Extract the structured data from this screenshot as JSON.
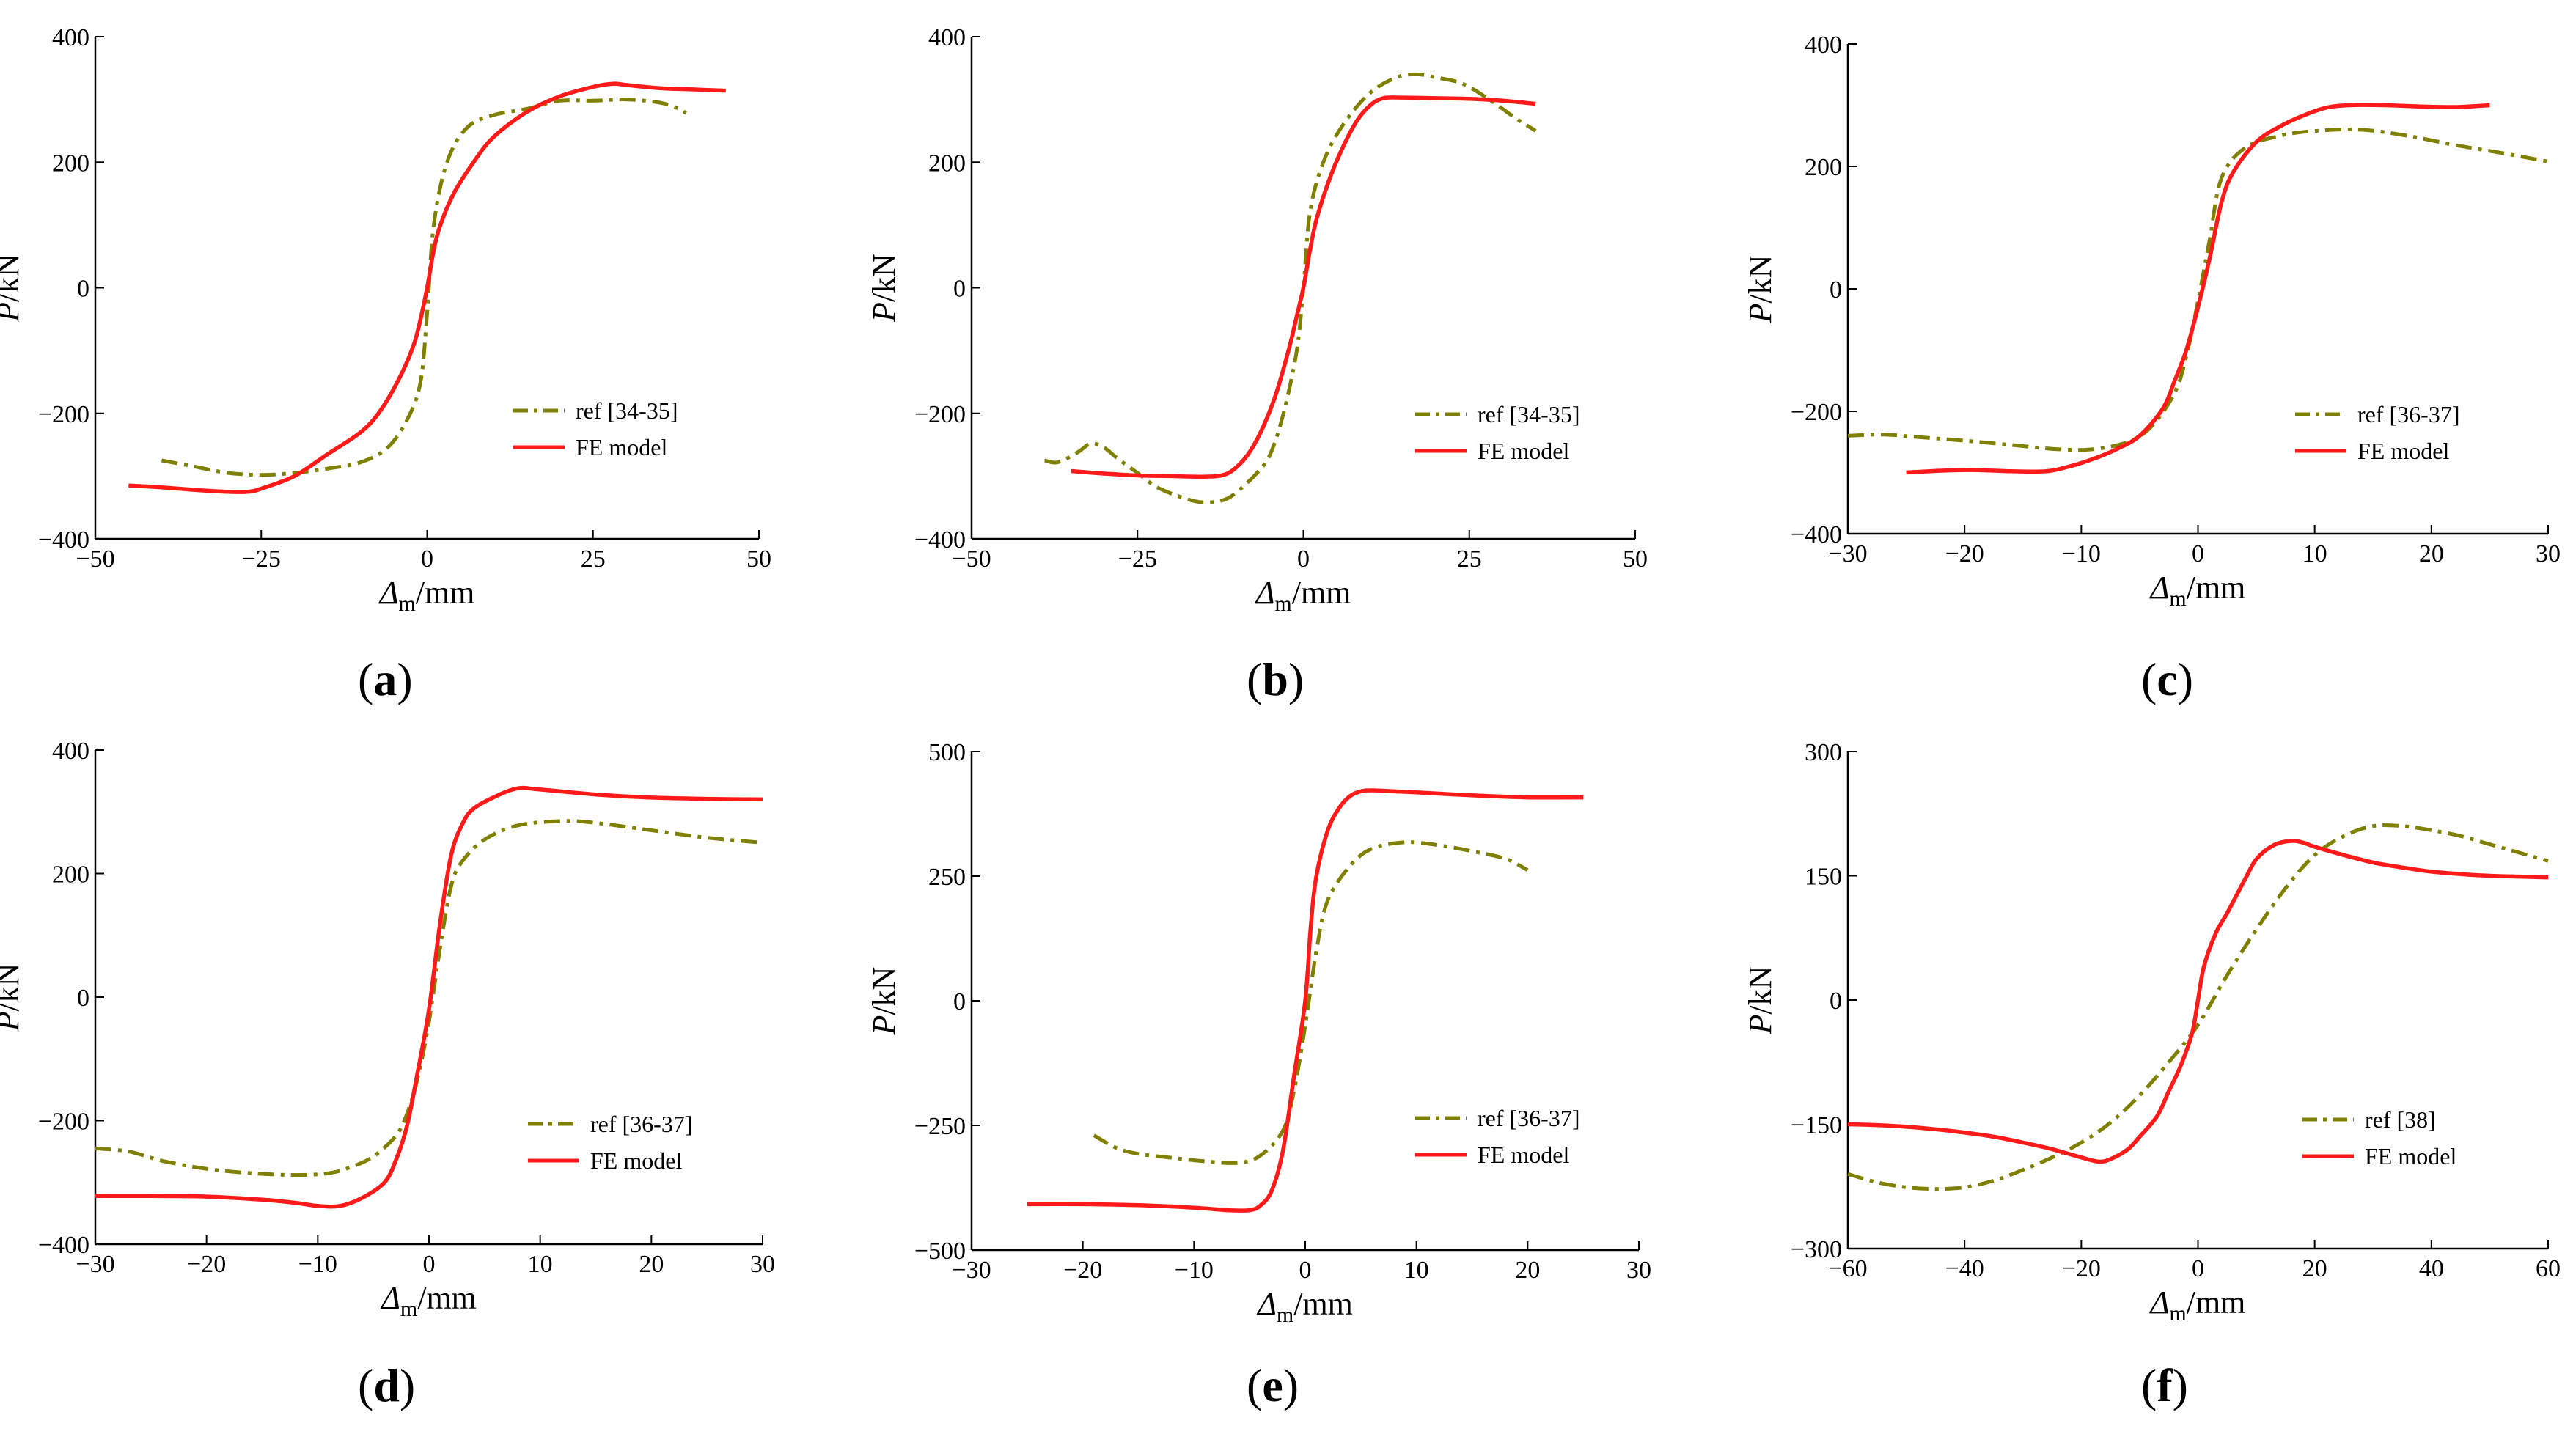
{
  "colors": {
    "ref": "#808000",
    "fe": "#ff1a1a",
    "axis": "#000000"
  },
  "chart_data": [
    {
      "type": "line",
      "label": "a",
      "xlabel": "Δm/mm",
      "ylabel": "P/kN",
      "xlim": [
        -50,
        50
      ],
      "ylim": [
        -400,
        400
      ],
      "xticks": [
        -50,
        -25,
        0,
        25,
        50
      ],
      "yticks": [
        -400,
        -200,
        0,
        200,
        400
      ],
      "legend": {
        "position": "lower-right"
      },
      "series": [
        {
          "name": "ref [34-35]",
          "style": "dashdot",
          "x": [
            -40,
            -35,
            -30,
            -25,
            -20,
            -15,
            -10,
            -6,
            -3,
            -1,
            0,
            1,
            3,
            6,
            10,
            15,
            20,
            25,
            30,
            35,
            38,
            39
          ],
          "y": [
            -275,
            -285,
            -295,
            -298,
            -295,
            -288,
            -278,
            -255,
            -210,
            -150,
            -40,
            100,
            200,
            255,
            275,
            285,
            298,
            298,
            300,
            295,
            285,
            278
          ]
        },
        {
          "name": "FE model",
          "style": "solid",
          "x": [
            -45,
            -40,
            -35,
            -30,
            -27,
            -25,
            -20,
            -15,
            -10,
            -7,
            -4,
            -2,
            -1,
            0,
            1,
            2,
            4,
            7,
            10,
            15,
            20,
            25,
            28,
            30,
            35,
            40,
            45
          ],
          "y": [
            -315,
            -318,
            -322,
            -325,
            -325,
            -320,
            -300,
            -265,
            -230,
            -195,
            -140,
            -90,
            -50,
            0,
            60,
            100,
            150,
            200,
            240,
            280,
            305,
            320,
            325,
            323,
            318,
            316,
            314
          ]
        }
      ]
    },
    {
      "type": "line",
      "label": "b",
      "xlabel": "Δm/mm",
      "ylabel": "P/kN",
      "xlim": [
        -50,
        50
      ],
      "ylim": [
        -400,
        400
      ],
      "xticks": [
        -50,
        -25,
        0,
        25,
        50
      ],
      "yticks": [
        -400,
        -200,
        0,
        200,
        400
      ],
      "legend": {
        "position": "lower-right"
      },
      "series": [
        {
          "name": "ref  [34-35]",
          "style": "dashdot",
          "x": [
            -39,
            -37,
            -34,
            -32,
            -30,
            -28,
            -25,
            -22,
            -18,
            -15,
            -12,
            -10,
            -7,
            -5,
            -3,
            -1,
            0,
            1,
            3,
            6,
            10,
            14,
            17,
            20,
            24,
            28,
            32,
            35
          ],
          "y": [
            -275,
            -278,
            -262,
            -248,
            -255,
            -272,
            -295,
            -318,
            -335,
            -342,
            -338,
            -325,
            -295,
            -265,
            -200,
            -100,
            0,
            120,
            200,
            260,
            310,
            335,
            340,
            335,
            325,
            300,
            270,
            250
          ]
        },
        {
          "name": "FE model",
          "style": "solid",
          "x": [
            -35,
            -30,
            -25,
            -20,
            -15,
            -12,
            -10,
            -8,
            -6,
            -4,
            -2,
            -1,
            0,
            1,
            2,
            4,
            6,
            8,
            10,
            12,
            15,
            20,
            25,
            30,
            35
          ],
          "y": [
            -292,
            -296,
            -299,
            -300,
            -301,
            -298,
            -285,
            -260,
            -220,
            -165,
            -90,
            -45,
            0,
            60,
            110,
            175,
            225,
            265,
            290,
            302,
            303,
            302,
            301,
            298,
            293
          ]
        }
      ]
    },
    {
      "type": "line",
      "label": "c",
      "xlabel": "Δm/mm",
      "ylabel": "P/kN",
      "xlim": [
        -30,
        30
      ],
      "ylim": [
        -400,
        400
      ],
      "xticks": [
        -30,
        -20,
        -10,
        0,
        10,
        20,
        30
      ],
      "yticks": [
        -400,
        -200,
        0,
        200,
        400
      ],
      "legend": {
        "position": "lower-right"
      },
      "series": [
        {
          "name": "ref [36-37]",
          "style": "dashdot",
          "x": [
            -30,
            -27,
            -24,
            -20,
            -16,
            -12,
            -9,
            -6,
            -4,
            -2,
            -1,
            0,
            1,
            2,
            4,
            7,
            10,
            14,
            18,
            22,
            26,
            30
          ],
          "y": [
            -240,
            -238,
            -242,
            -248,
            -255,
            -262,
            -262,
            -250,
            -225,
            -170,
            -110,
            -20,
            80,
            180,
            230,
            250,
            258,
            260,
            250,
            235,
            222,
            208
          ]
        },
        {
          "name": "FE model",
          "style": "solid",
          "x": [
            -25,
            -22,
            -19,
            -16,
            -13,
            -11,
            -9,
            -7,
            -5,
            -3,
            -2,
            -1,
            0,
            1,
            2,
            3,
            5,
            7,
            9,
            11,
            13,
            16,
            19,
            22,
            25
          ],
          "y": [
            -300,
            -297,
            -296,
            -298,
            -298,
            -290,
            -278,
            -262,
            -240,
            -195,
            -150,
            -100,
            -30,
            50,
            140,
            190,
            240,
            265,
            283,
            296,
            300,
            300,
            298,
            297,
            300
          ]
        }
      ]
    },
    {
      "type": "line",
      "label": "d",
      "xlabel": "Δm/mm",
      "ylabel": "P/kN",
      "xlim": [
        -30,
        30
      ],
      "ylim": [
        -400,
        400
      ],
      "xticks": [
        -30,
        -20,
        -10,
        0,
        10,
        20,
        30
      ],
      "yticks": [
        -400,
        -200,
        0,
        200,
        400
      ],
      "legend": {
        "position": "lower-right"
      },
      "series": [
        {
          "name": "ref [36-37]",
          "style": "dashdot",
          "x": [
            -30,
            -27,
            -24,
            -20,
            -16,
            -12,
            -9,
            -7,
            -5,
            -3,
            -2,
            -1,
            0,
            1,
            2,
            3,
            5,
            8,
            12,
            15,
            20,
            25,
            30
          ],
          "y": [
            -245,
            -250,
            -265,
            -278,
            -285,
            -288,
            -285,
            -275,
            -258,
            -225,
            -190,
            -130,
            -40,
            80,
            180,
            220,
            255,
            278,
            285,
            282,
            270,
            258,
            250
          ]
        },
        {
          "name": "FE model",
          "style": "solid",
          "x": [
            -30,
            -25,
            -20,
            -15,
            -12,
            -10,
            -8,
            -6,
            -4,
            -3,
            -2,
            -1,
            0,
            1,
            2,
            3,
            4,
            6,
            8,
            10,
            15,
            20,
            25,
            30
          ],
          "y": [
            -322,
            -322,
            -323,
            -328,
            -333,
            -338,
            -338,
            -325,
            -300,
            -265,
            -210,
            -120,
            -20,
            120,
            230,
            280,
            305,
            325,
            338,
            336,
            328,
            323,
            321,
            320
          ]
        }
      ]
    },
    {
      "type": "line",
      "label": "e",
      "xlabel": "Δm/mm",
      "ylabel": "P/kN",
      "xlim": [
        -30,
        30
      ],
      "ylim": [
        -500,
        500
      ],
      "xticks": [
        -30,
        -20,
        -10,
        0,
        10,
        20,
        30
      ],
      "yticks": [
        -500,
        -250,
        0,
        250,
        500
      ],
      "legend": {
        "position": "lower-right"
      },
      "series": [
        {
          "name": "ref [36-37]",
          "style": "dashdot",
          "x": [
            -19,
            -17,
            -15,
            -12,
            -9,
            -6,
            -4,
            -2,
            -1,
            0,
            1,
            2,
            4,
            6,
            9,
            12,
            15,
            18,
            20
          ],
          "y": [
            -270,
            -295,
            -307,
            -315,
            -322,
            -325,
            -310,
            -260,
            -180,
            -50,
            100,
            200,
            270,
            305,
            318,
            312,
            300,
            285,
            262
          ]
        },
        {
          "name": "FE model",
          "style": "solid",
          "x": [
            -25,
            -20,
            -15,
            -10,
            -7,
            -5,
            -4,
            -3,
            -2,
            -1,
            0,
            0.5,
            1,
            2,
            3,
            4,
            5,
            6,
            8,
            10,
            15,
            20,
            25
          ],
          "y": [
            -408,
            -408,
            -410,
            -415,
            -420,
            -420,
            -410,
            -380,
            -300,
            -150,
            0,
            150,
            250,
            340,
            385,
            410,
            420,
            422,
            420,
            418,
            412,
            408,
            408
          ]
        }
      ]
    },
    {
      "type": "line",
      "label": "f",
      "xlabel": "Δm/mm",
      "ylabel": "P/kN",
      "xlim": [
        -60,
        60
      ],
      "ylim": [
        -300,
        300
      ],
      "xticks": [
        -60,
        -40,
        -20,
        0,
        20,
        40,
        60
      ],
      "yticks": [
        -300,
        -150,
        0,
        150,
        300
      ],
      "legend": {
        "position": "lower-right"
      },
      "series": [
        {
          "name": "ref [38]",
          "style": "dashdot",
          "x": [
            -60,
            -55,
            -50,
            -45,
            -40,
            -35,
            -30,
            -25,
            -20,
            -15,
            -10,
            -5,
            0,
            5,
            10,
            15,
            20,
            25,
            30,
            35,
            40,
            45,
            50,
            55,
            60
          ],
          "y": [
            -210,
            -220,
            -226,
            -228,
            -226,
            -218,
            -205,
            -190,
            -172,
            -148,
            -115,
            -75,
            -30,
            30,
            85,
            135,
            175,
            198,
            210,
            210,
            205,
            198,
            188,
            178,
            168
          ]
        },
        {
          "name": "FE model",
          "style": "solid",
          "x": [
            -60,
            -55,
            -50,
            -45,
            -40,
            -35,
            -30,
            -25,
            -20,
            -17,
            -15,
            -12,
            -10,
            -7,
            -5,
            -3,
            -1,
            0,
            1,
            3,
            5,
            8,
            10,
            13,
            16,
            18,
            20,
            25,
            30,
            35,
            40,
            45,
            50,
            55,
            60
          ],
          "y": [
            -150,
            -151,
            -153,
            -156,
            -160,
            -165,
            -172,
            -180,
            -190,
            -195,
            -192,
            -180,
            -165,
            -140,
            -110,
            -80,
            -40,
            0,
            40,
            80,
            105,
            145,
            170,
            187,
            192,
            190,
            185,
            175,
            166,
            160,
            155,
            152,
            150,
            149,
            148
          ]
        }
      ]
    }
  ]
}
